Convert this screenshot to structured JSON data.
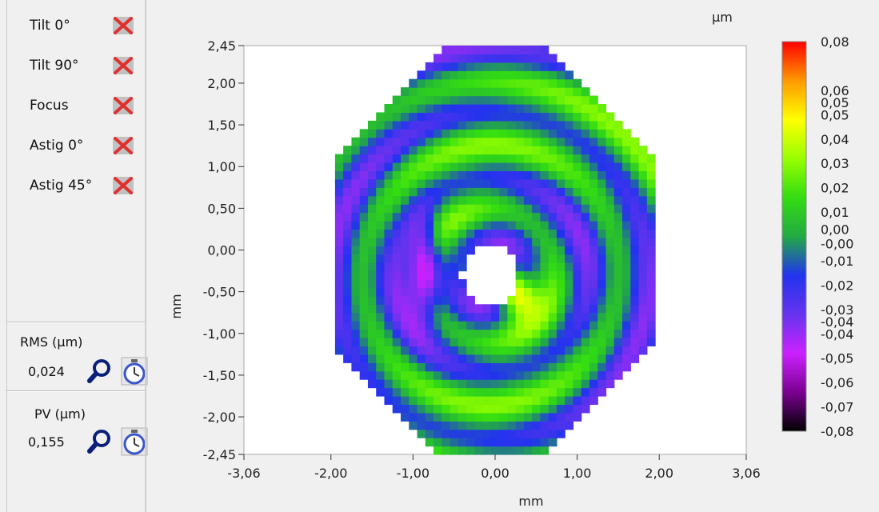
{
  "zernike_terms": [
    {
      "label": "Tilt 0°",
      "icon": "disabled-x-icon"
    },
    {
      "label": "Tilt 90°",
      "icon": "disabled-x-icon"
    },
    {
      "label": "Focus",
      "icon": "disabled-x-icon"
    },
    {
      "label": "Astig 0°",
      "icon": "disabled-x-icon"
    },
    {
      "label": "Astig 45°",
      "icon": "disabled-x-icon"
    }
  ],
  "rms": {
    "title": "RMS (µm)",
    "value": "0,024",
    "icons": [
      "magnifier-icon",
      "stopwatch-icon"
    ]
  },
  "pv": {
    "title": "PV (µm)",
    "value": "0,155",
    "icons": [
      "magnifier-icon",
      "stopwatch-icon"
    ]
  },
  "chart_data": {
    "type": "heatmap",
    "title": "",
    "xlabel": "mm",
    "ylabel": "mm",
    "colorbar_unit": "µm",
    "xlim": [
      -3.06,
      3.06
    ],
    "ylim": [
      -2.45,
      2.45
    ],
    "x_ticks": [
      "-3,06",
      "-2,00",
      "-1,00",
      "0,00",
      "1,00",
      "2,00",
      "3,06"
    ],
    "x_tick_values": [
      -3.06,
      -2.0,
      -1.0,
      0.0,
      1.0,
      2.0,
      3.06
    ],
    "y_ticks": [
      "2,45",
      "2,00",
      "1,50",
      "1,00",
      "0,50",
      "0,00",
      "-0,50",
      "-1,00",
      "-1,50",
      "-2,00",
      "-2,45"
    ],
    "y_tick_values": [
      2.45,
      2.0,
      1.5,
      1.0,
      0.5,
      0.0,
      -0.5,
      -1.0,
      -1.5,
      -2.0,
      -2.45
    ],
    "colorbar_labels": [
      "0,08",
      "0,06",
      "0,05",
      "0,05",
      "0,04",
      "0,03",
      "0,02",
      "0,01",
      "0,00",
      "-0,00",
      "-0,01",
      "-0,02",
      "-0,03",
      "-0,04",
      "-0,04",
      "-0,05",
      "-0,06",
      "-0,07",
      "-0,08"
    ],
    "colorbar_label_values": [
      0.08,
      0.06,
      0.055,
      0.05,
      0.04,
      0.03,
      0.02,
      0.01,
      0.003,
      -0.003,
      -0.01,
      -0.02,
      -0.03,
      -0.035,
      -0.04,
      -0.05,
      -0.06,
      -0.07,
      -0.08
    ],
    "zlim": [
      -0.08,
      0.08
    ],
    "colormap": [
      "#000000",
      "#7a0090",
      "#cc22ff",
      "#6633ee",
      "#2233ee",
      "#22aa44",
      "#33dd11",
      "#99ff00",
      "#ffff00",
      "#ff9900",
      "#ff0000"
    ],
    "pupil_radius_mm": 2.0,
    "central_hole_radius_mm": 0.35,
    "central_hole_center_mm": [
      -0.05,
      -0.3
    ],
    "rms_um": 0.024,
    "pv_um": 0.155
  }
}
